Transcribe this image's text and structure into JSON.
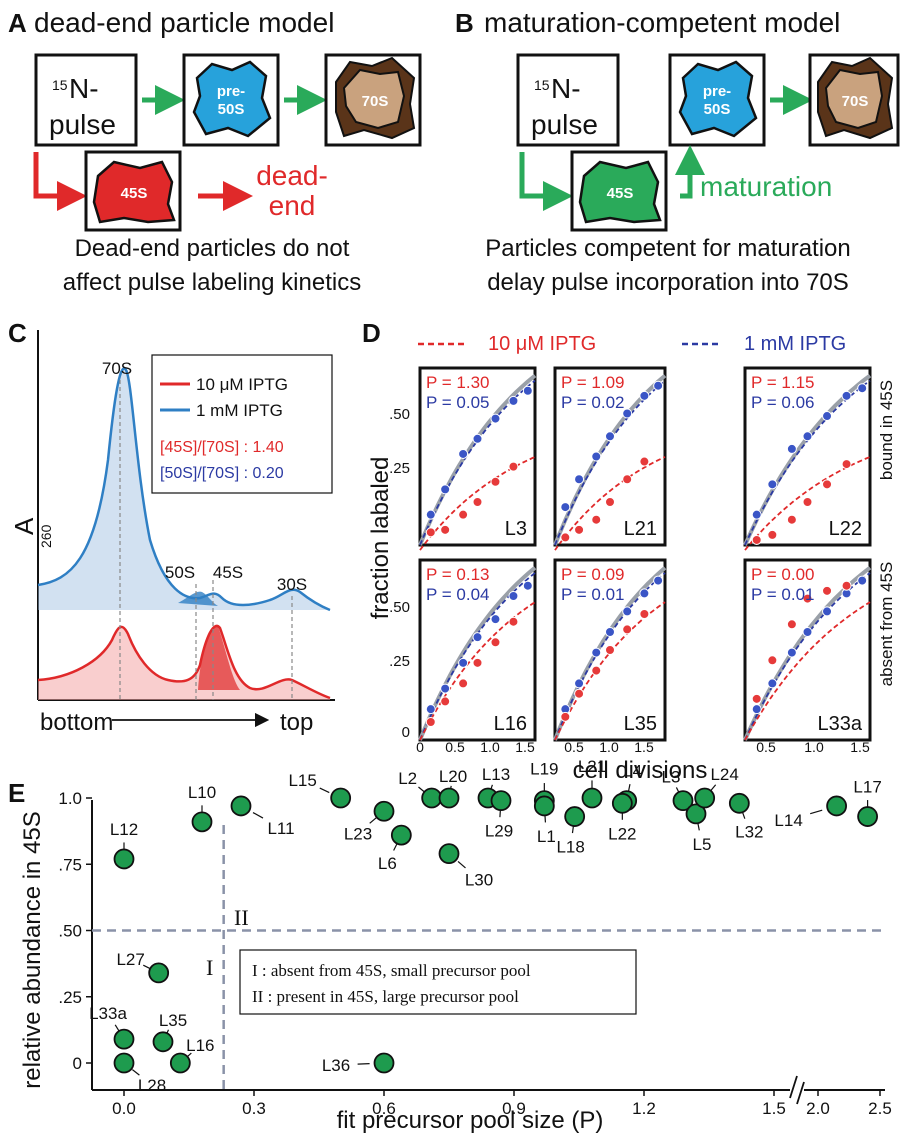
{
  "panel_a": {
    "letter": "A",
    "title": "dead-end particle model",
    "pulse_box_sup": "15",
    "pulse_box_line1": "N-",
    "pulse_box_line2": "pulse",
    "pre50s_l1": "pre-",
    "pre50s_l2": "50S",
    "s70": "70S",
    "s45": "45S",
    "dead_l1": "dead-",
    "dead_l2": "end",
    "caption_l1": "Dead-end particles do not",
    "caption_l2": "affect pulse labeling kinetics"
  },
  "panel_b": {
    "letter": "B",
    "title": "maturation-competent model",
    "pulse_box_sup": "15",
    "pulse_box_line1": "N-",
    "pulse_box_line2": "pulse",
    "pre50s_l1": "pre-",
    "pre50s_l2": "50S",
    "s70": "70S",
    "s45": "45S",
    "maturation": "maturation",
    "caption_l1": "Particles competent for maturation",
    "caption_l2": "delay pulse incorporation into 70S"
  },
  "panel_c": {
    "letter": "C",
    "ylabel": "A",
    "ylabel_sub": "260",
    "peak_70s": "70S",
    "peak_50s": "50S",
    "peak_45s": "45S",
    "peak_30s": "30S",
    "legend_red": "10 μM IPTG",
    "legend_blue": "1 mM IPTG",
    "ratio_red": "[45S]/[70S] : 1.40",
    "ratio_blue": "[50S]/[70S] : 0.20",
    "x_left": "bottom",
    "x_right": "top"
  },
  "panel_d": {
    "letter": "D",
    "legend_red": "10 μM IPTG",
    "legend_blue": "1 mM IPTG",
    "ylabel": "fraction labaled",
    "xlabel": "cell divisions",
    "row1_label": "bound in 45S",
    "row2_label": "absent from 45S",
    "yticks": [
      ".50",
      ".25",
      "0"
    ],
    "xticks": [
      "0",
      "0.5",
      "1.0",
      "1.5"
    ],
    "panels": [
      {
        "name": "L3",
        "p_red": "P = 1.30",
        "p_blue": "P = 0.05"
      },
      {
        "name": "L21",
        "p_red": "P = 1.09",
        "p_blue": "P = 0.02"
      },
      {
        "name": "L22",
        "p_red": "P = 1.15",
        "p_blue": "P = 0.06"
      },
      {
        "name": "L16",
        "p_red": "P = 0.13",
        "p_blue": "P = 0.04"
      },
      {
        "name": "L35",
        "p_red": "P = 0.09",
        "p_blue": "P = 0.01"
      },
      {
        "name": "L33a",
        "p_red": "P = 0.00",
        "p_blue": "P = 0.01"
      }
    ]
  },
  "panel_e": {
    "letter": "E",
    "ylabel": "relative abundance in 45S",
    "xlabel": "fit precursor pool size (P)",
    "region_1": "I",
    "region_2": "II",
    "legend_l1": "I : absent from 45S, small precursor pool",
    "legend_l2": "II : present in 45S, large precursor pool"
  },
  "chart_data": [
    {
      "type": "scatter",
      "panel": "E",
      "xlabel": "fit precursor pool size (P)",
      "ylabel": "relative abundance in 45S",
      "xticks": [
        "0.0",
        "0.3",
        "0.6",
        "0.9",
        "1.2",
        "1.5",
        "2.0",
        "2.5"
      ],
      "yticks": [
        "0",
        ".25",
        ".50",
        ".75",
        "1.0"
      ],
      "axis_break": "between 1.5 and 2.0",
      "points": [
        {
          "label": "L12",
          "x": 0.0,
          "y": 0.77
        },
        {
          "label": "L10",
          "x": 0.18,
          "y": 0.91
        },
        {
          "label": "L11",
          "x": 0.27,
          "y": 0.97
        },
        {
          "label": "L15",
          "x": 0.5,
          "y": 1.0
        },
        {
          "label": "L23",
          "x": 0.6,
          "y": 0.95
        },
        {
          "label": "L6",
          "x": 0.64,
          "y": 0.86
        },
        {
          "label": "L2",
          "x": 0.71,
          "y": 1.0
        },
        {
          "label": "L20",
          "x": 0.75,
          "y": 1.0
        },
        {
          "label": "L30",
          "x": 0.75,
          "y": 0.79
        },
        {
          "label": "L13",
          "x": 0.84,
          "y": 1.0
        },
        {
          "label": "L29",
          "x": 0.87,
          "y": 0.99
        },
        {
          "label": "L19",
          "x": 0.97,
          "y": 0.99
        },
        {
          "label": "L1",
          "x": 0.97,
          "y": 0.97
        },
        {
          "label": "L18",
          "x": 1.04,
          "y": 0.93
        },
        {
          "label": "L21",
          "x": 1.08,
          "y": 1.0
        },
        {
          "label": "L4",
          "x": 1.16,
          "y": 0.99
        },
        {
          "label": "L22",
          "x": 1.15,
          "y": 0.98
        },
        {
          "label": "L3",
          "x": 1.29,
          "y": 0.99
        },
        {
          "label": "L5",
          "x": 1.32,
          "y": 0.94
        },
        {
          "label": "L24",
          "x": 1.34,
          "y": 1.0
        },
        {
          "label": "L32",
          "x": 1.42,
          "y": 0.98
        },
        {
          "label": "L14",
          "x": 2.15,
          "y": 0.97
        },
        {
          "label": "L17",
          "x": 2.4,
          "y": 0.93
        },
        {
          "label": "L27",
          "x": 0.08,
          "y": 0.34
        },
        {
          "label": "L33a",
          "x": 0.0,
          "y": 0.09
        },
        {
          "label": "L35",
          "x": 0.09,
          "y": 0.08
        },
        {
          "label": "L16",
          "x": 0.13,
          "y": 0.0
        },
        {
          "label": "L28",
          "x": 0.0,
          "y": 0.0
        },
        {
          "label": "L36",
          "x": 0.6,
          "y": 0.0
        }
      ],
      "thresholds": {
        "x": 0.23,
        "y": 0.5
      }
    },
    {
      "type": "scatter",
      "panel": "D",
      "xlabel": "cell divisions",
      "ylabel": "fraction labaled",
      "series_red": "10 μM IPTG",
      "series_blue": "1 mM IPTG",
      "subplots": [
        {
          "name": "L3",
          "red": [
            [
              0.15,
              0.05
            ],
            [
              0.35,
              0.06
            ],
            [
              0.6,
              0.12
            ],
            [
              0.8,
              0.17
            ],
            [
              1.05,
              0.25
            ],
            [
              1.3,
              0.31
            ]
          ],
          "blue": [
            [
              0.15,
              0.12
            ],
            [
              0.35,
              0.22
            ],
            [
              0.6,
              0.36
            ],
            [
              0.8,
              0.42
            ],
            [
              1.05,
              0.5
            ],
            [
              1.3,
              0.57
            ],
            [
              1.5,
              0.61
            ]
          ]
        },
        {
          "name": "L21",
          "red": [
            [
              0.15,
              0.03
            ],
            [
              0.35,
              0.06
            ],
            [
              0.6,
              0.1
            ],
            [
              0.8,
              0.17
            ],
            [
              1.05,
              0.26
            ],
            [
              1.3,
              0.33
            ]
          ],
          "blue": [
            [
              0.15,
              0.15
            ],
            [
              0.35,
              0.26
            ],
            [
              0.6,
              0.35
            ],
            [
              0.8,
              0.43
            ],
            [
              1.05,
              0.52
            ],
            [
              1.3,
              0.59
            ],
            [
              1.5,
              0.63
            ]
          ]
        },
        {
          "name": "L22",
          "red": [
            [
              0.15,
              0.02
            ],
            [
              0.35,
              0.04
            ],
            [
              0.6,
              0.1
            ],
            [
              0.8,
              0.17
            ],
            [
              1.05,
              0.24
            ],
            [
              1.3,
              0.32
            ]
          ],
          "blue": [
            [
              0.15,
              0.12
            ],
            [
              0.35,
              0.24
            ],
            [
              0.6,
              0.38
            ],
            [
              0.8,
              0.43
            ],
            [
              1.05,
              0.51
            ],
            [
              1.3,
              0.59
            ],
            [
              1.5,
              0.62
            ]
          ]
        },
        {
          "name": "L16",
          "red": [
            [
              0.15,
              0.07
            ],
            [
              0.35,
              0.15
            ],
            [
              0.6,
              0.22
            ],
            [
              0.8,
              0.3
            ],
            [
              1.05,
              0.38
            ],
            [
              1.3,
              0.46
            ]
          ],
          "blue": [
            [
              0.15,
              0.12
            ],
            [
              0.35,
              0.2
            ],
            [
              0.6,
              0.3
            ],
            [
              0.8,
              0.4
            ],
            [
              1.05,
              0.47
            ],
            [
              1.3,
              0.56
            ],
            [
              1.5,
              0.6
            ]
          ]
        },
        {
          "name": "L35",
          "red": [
            [
              0.15,
              0.09
            ],
            [
              0.35,
              0.18
            ],
            [
              0.6,
              0.27
            ],
            [
              0.8,
              0.35
            ],
            [
              1.05,
              0.43
            ],
            [
              1.3,
              0.49
            ]
          ],
          "blue": [
            [
              0.15,
              0.12
            ],
            [
              0.35,
              0.22
            ],
            [
              0.6,
              0.34
            ],
            [
              0.8,
              0.42
            ],
            [
              1.05,
              0.5
            ],
            [
              1.3,
              0.57
            ],
            [
              1.5,
              0.62
            ]
          ]
        },
        {
          "name": "L33a",
          "red": [
            [
              0.15,
              0.16
            ],
            [
              0.35,
              0.31
            ],
            [
              0.6,
              0.45
            ],
            [
              0.8,
              0.55
            ],
            [
              1.05,
              0.58
            ],
            [
              1.3,
              0.6
            ]
          ],
          "blue": [
            [
              0.15,
              0.12
            ],
            [
              0.35,
              0.22
            ],
            [
              0.6,
              0.34
            ],
            [
              0.8,
              0.42
            ],
            [
              1.05,
              0.5
            ],
            [
              1.3,
              0.57
            ],
            [
              1.5,
              0.62
            ]
          ]
        }
      ]
    }
  ]
}
